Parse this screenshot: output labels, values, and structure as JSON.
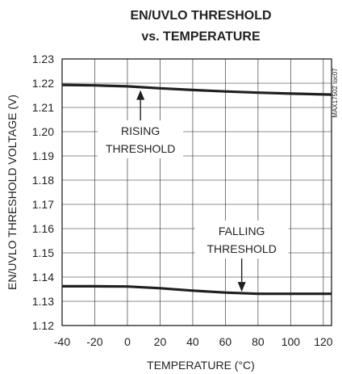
{
  "chart_data": {
    "type": "line",
    "title_line1": "EN/UVLO THRESHOLD",
    "title_line2": "vs. TEMPERATURE",
    "xlabel": "TEMPERATURE (°C)",
    "ylabel": "EN/UVLO THRESHOLD VOLTAGE (V)",
    "xlim": [
      -40,
      125
    ],
    "ylim": [
      1.12,
      1.23
    ],
    "x_ticks": [
      -40,
      -20,
      0,
      20,
      40,
      60,
      80,
      100,
      120
    ],
    "y_ticks": [
      "1.12",
      "1.13",
      "1.14",
      "1.15",
      "1.16",
      "1.17",
      "1.18",
      "1.19",
      "1.20",
      "1.21",
      "1.22",
      "1.23"
    ],
    "grid": true,
    "side_code": "MAX17502 toc07",
    "series": [
      {
        "x": [
          -40,
          -20,
          0,
          20,
          40,
          60,
          80,
          100,
          125
        ],
        "values": [
          1.2193,
          1.2191,
          1.2187,
          1.2179,
          1.2172,
          1.2166,
          1.2161,
          1.2157,
          1.2153
        ]
      },
      {
        "x": [
          -40,
          -20,
          0,
          20,
          40,
          60,
          80,
          100,
          125
        ],
        "values": [
          1.1362,
          1.1362,
          1.1361,
          1.1354,
          1.1344,
          1.1336,
          1.1331,
          1.1331,
          1.1331
        ]
      }
    ],
    "annotations": [
      {
        "lines": [
          "RISING",
          "THRESHOLD"
        ],
        "target": [
          8,
          1.2178
        ]
      },
      {
        "lines": [
          "FALLING",
          "THRESHOLD"
        ],
        "target": [
          70,
          1.1333
        ]
      }
    ]
  }
}
